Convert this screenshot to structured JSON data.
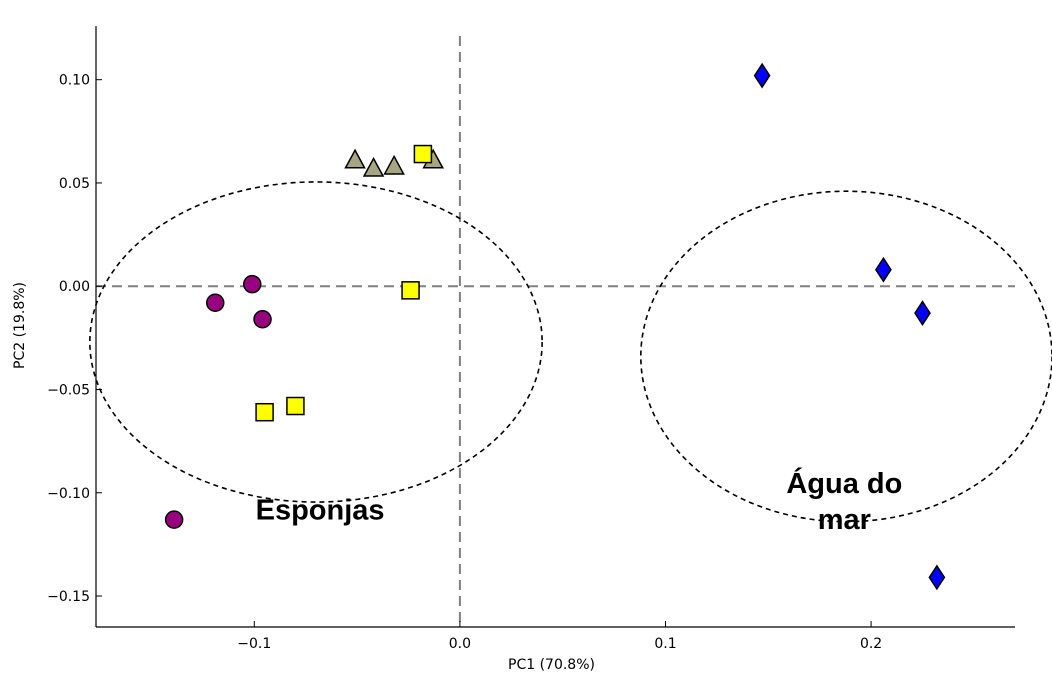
{
  "chart_data": {
    "type": "scatter",
    "xlabel": "PC1 (70.8%)",
    "ylabel": "PC2 (19.8%)",
    "xlim": [
      -0.177,
      0.27
    ],
    "ylim": [
      -0.165,
      0.126
    ],
    "x_ticks": [
      {
        "value": -0.1,
        "label": "−0.1"
      },
      {
        "value": 0.0,
        "label": "0.0"
      },
      {
        "value": 0.1,
        "label": "0.1"
      },
      {
        "value": 0.2,
        "label": "0.2"
      }
    ],
    "y_ticks": [
      {
        "value": 0.1,
        "label": "0.10"
      },
      {
        "value": 0.05,
        "label": "0.05"
      },
      {
        "value": 0.0,
        "label": "0.00"
      },
      {
        "value": -0.05,
        "label": "−0.05"
      },
      {
        "value": -0.1,
        "label": "−0.10"
      },
      {
        "value": -0.15,
        "label": "−0.15"
      }
    ],
    "reference_lines": {
      "x": 0.0,
      "y": 0.0,
      "style": "dashed",
      "color": "#808080"
    },
    "grid": false,
    "series": [
      {
        "marker": "circle",
        "color": "#990080",
        "points": [
          {
            "x": -0.101,
            "y": 0.001
          },
          {
            "x": -0.119,
            "y": -0.008
          },
          {
            "x": -0.096,
            "y": -0.016
          },
          {
            "x": -0.139,
            "y": -0.113
          }
        ]
      },
      {
        "marker": "triangle",
        "color": "#A8A583",
        "points": [
          {
            "x": -0.051,
            "y": 0.061
          },
          {
            "x": -0.042,
            "y": 0.057
          },
          {
            "x": -0.032,
            "y": 0.058
          },
          {
            "x": -0.013,
            "y": 0.061
          }
        ]
      },
      {
        "marker": "square",
        "color": "#FFFF00",
        "points": [
          {
            "x": -0.018,
            "y": 0.064
          },
          {
            "x": -0.024,
            "y": -0.002
          },
          {
            "x": -0.095,
            "y": -0.061
          },
          {
            "x": -0.08,
            "y": -0.058
          }
        ]
      },
      {
        "marker": "diamond",
        "color": "#0000FF",
        "points": [
          {
            "x": 0.147,
            "y": 0.102
          },
          {
            "x": 0.206,
            "y": 0.008
          },
          {
            "x": 0.225,
            "y": -0.013
          },
          {
            "x": 0.232,
            "y": -0.141
          }
        ]
      }
    ],
    "groups": [
      {
        "label_lines": [
          "Esponjas"
        ],
        "center": {
          "x": -0.07,
          "y": -0.027
        },
        "radius_x": 0.11,
        "radius_y": 0.0775,
        "label_anchor": {
          "x": -0.068,
          "y": -0.113
        }
      },
      {
        "label_lines": [
          "Água do",
          "mar"
        ],
        "center": {
          "x": 0.188,
          "y": -0.034
        },
        "radius_x": 0.1,
        "radius_y": 0.08,
        "label_anchor": {
          "x": 0.187,
          "y": -0.1
        }
      }
    ]
  }
}
